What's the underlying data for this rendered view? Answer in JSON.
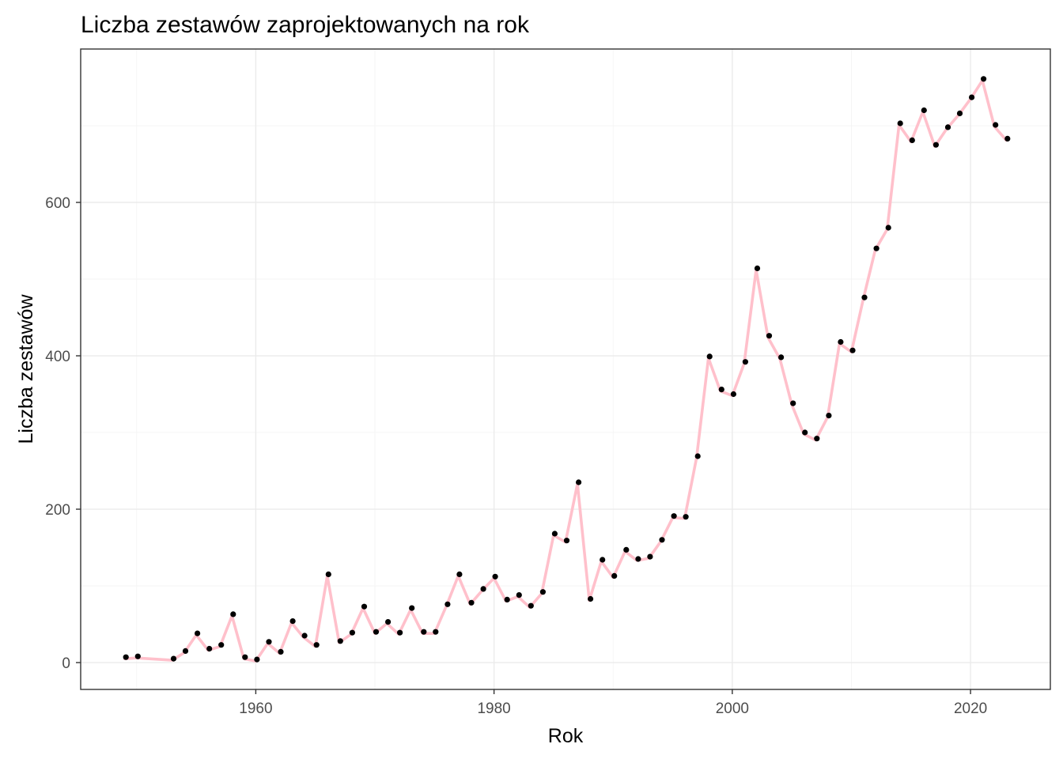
{
  "chart_data": {
    "type": "line",
    "title": "Liczba zestawów zaprojektowanych na rok",
    "xlabel": "Rok",
    "ylabel": "Liczba zestawów",
    "xlim": [
      1945.3,
      2026.7
    ],
    "ylim": [
      -35,
      800
    ],
    "x_ticks": [
      1960,
      1980,
      2000,
      2020
    ],
    "y_ticks": [
      0,
      200,
      400,
      600
    ],
    "grid": true,
    "line_color": "#ffc0cb",
    "point_color": "#000000",
    "series": [
      {
        "x": [
          1949,
          1950,
          1953,
          1954,
          1955,
          1956,
          1957,
          1958,
          1959,
          1960,
          1961,
          1962,
          1963,
          1964,
          1965,
          1966,
          1967,
          1968,
          1969,
          1970,
          1971,
          1972,
          1973,
          1974,
          1975,
          1976,
          1977,
          1978,
          1979,
          1980,
          1981,
          1982,
          1983,
          1984,
          1985,
          1986,
          1987,
          1988,
          1989,
          1990,
          1991,
          1992,
          1993,
          1994,
          1995,
          1996,
          1997,
          1998,
          1999,
          2000,
          2001,
          2002,
          2003,
          2004,
          2005,
          2006,
          2007,
          2008,
          2009,
          2010,
          2011,
          2012,
          2013,
          2014,
          2015,
          2016,
          2017,
          2018,
          2019,
          2020,
          2021,
          2022,
          2023
        ],
        "y": [
          5,
          6,
          3,
          13,
          36,
          16,
          21,
          61,
          5,
          2,
          25,
          12,
          52,
          33,
          21,
          113,
          26,
          37,
          71,
          38,
          51,
          37,
          69,
          38,
          38,
          74,
          113,
          76,
          94,
          110,
          80,
          86,
          72,
          90,
          166,
          157,
          233,
          81,
          132,
          111,
          145,
          133,
          136,
          158,
          189,
          188,
          267,
          397,
          354,
          348,
          390,
          512,
          424,
          396,
          336,
          298,
          290,
          320,
          416,
          405,
          474,
          538,
          565,
          701,
          679,
          718,
          673,
          696,
          714,
          735,
          759,
          699,
          681
        ]
      }
    ]
  }
}
